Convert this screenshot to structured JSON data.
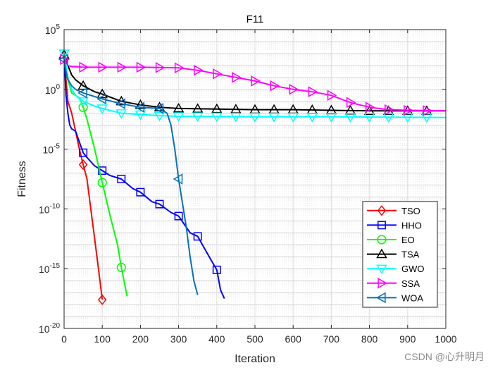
{
  "watermark": "CSDN @心升明月",
  "chart_data": {
    "type": "line",
    "title": "F11",
    "xlabel": "Iteration",
    "ylabel": "Fitness",
    "xlim": [
      0,
      1000
    ],
    "ylim": [
      1e-20,
      100000
    ],
    "yscale": "log",
    "grid": true,
    "legend_position": "bottom-right",
    "x_ticks": [
      0,
      100,
      200,
      300,
      400,
      500,
      600,
      700,
      800,
      900,
      1000
    ],
    "x_tick_labels": [
      "0",
      "100",
      "200",
      "300",
      "400",
      "500",
      "600",
      "700",
      "800",
      "900",
      "1000"
    ],
    "y_ticks": [
      -20,
      -15,
      -10,
      -5,
      0,
      5
    ],
    "y_tick_labels": [
      {
        "base": "10",
        "exp": "-20"
      },
      {
        "base": "10",
        "exp": "-15"
      },
      {
        "base": "10",
        "exp": "-10"
      },
      {
        "base": "10",
        "exp": "-5"
      },
      {
        "base": "10",
        "exp": "0"
      },
      {
        "base": "10",
        "exp": "5"
      }
    ],
    "series": [
      {
        "name": "TSO",
        "color": "#ff0000",
        "marker": "diamond",
        "x": [
          1,
          5,
          10,
          20,
          30,
          40,
          50,
          60,
          70,
          80,
          90,
          100
        ],
        "log10_y": [
          2.5,
          0.8,
          -1.0,
          -2.0,
          -3.5,
          -5.0,
          -6.3,
          -7.5,
          -10.0,
          -12.5,
          -15.0,
          -17.6
        ],
        "marker_x": [
          50,
          100
        ]
      },
      {
        "name": "HHO",
        "color": "#0000ff",
        "marker": "square",
        "x": [
          1,
          5,
          10,
          15,
          20,
          30,
          50,
          60,
          80,
          100,
          120,
          150,
          180,
          200,
          230,
          250,
          280,
          300,
          330,
          350,
          380,
          400,
          410,
          420
        ],
        "log10_y": [
          2.5,
          -0.5,
          -2.0,
          -3.0,
          -3.3,
          -3.5,
          -5.3,
          -5.7,
          -6.4,
          -6.8,
          -7.2,
          -7.5,
          -8.3,
          -8.6,
          -9.4,
          -9.6,
          -10.3,
          -10.6,
          -12.0,
          -12.3,
          -14.0,
          -15.1,
          -16.8,
          -17.5
        ],
        "marker_x": [
          50,
          100,
          150,
          200,
          250,
          300,
          350,
          400
        ]
      },
      {
        "name": "EO",
        "color": "#00ff00",
        "marker": "circle",
        "x": [
          1,
          5,
          10,
          20,
          40,
          50,
          60,
          80,
          100,
          120,
          140,
          150,
          160,
          165
        ],
        "log10_y": [
          2.5,
          1.5,
          0.8,
          -0.3,
          -0.7,
          -1.5,
          -2.5,
          -5.0,
          -7.8,
          -10.5,
          -13.0,
          -14.9,
          -16.5,
          -17.3
        ],
        "marker_x": [
          50,
          100,
          150
        ]
      },
      {
        "name": "TSA",
        "color": "#000000",
        "marker": "triangle-up",
        "x": [
          0,
          5,
          10,
          20,
          30,
          50,
          80,
          100,
          150,
          200,
          250,
          300,
          400,
          500,
          600,
          700,
          800,
          900,
          1000
        ],
        "log10_y": [
          2.9,
          2.5,
          2.0,
          1.2,
          0.8,
          0.3,
          -0.2,
          -0.4,
          -1.0,
          -1.3,
          -1.5,
          -1.6,
          -1.65,
          -1.7,
          -1.7,
          -1.75,
          -1.8,
          -1.8,
          -1.8
        ],
        "marker_x": [
          0,
          50,
          100,
          150,
          200,
          250,
          300,
          350,
          400,
          450,
          500,
          550,
          600,
          650,
          700,
          750,
          800,
          850,
          900,
          950
        ]
      },
      {
        "name": "GWO",
        "color": "#00ffff",
        "marker": "triangle-down",
        "x": [
          0,
          5,
          10,
          20,
          30,
          50,
          80,
          100,
          150,
          200,
          250,
          300,
          500,
          700,
          1000
        ],
        "log10_y": [
          3.0,
          2.0,
          1.0,
          0.0,
          -0.5,
          -1.0,
          -1.4,
          -1.6,
          -2.0,
          -2.1,
          -2.2,
          -2.25,
          -2.3,
          -2.3,
          -2.35
        ],
        "marker_x": [
          0,
          50,
          100,
          150,
          200,
          250,
          300,
          350,
          400,
          450,
          500,
          550,
          600,
          650,
          700,
          750,
          800,
          850,
          900,
          950
        ]
      },
      {
        "name": "SSA",
        "color": "#ff00ff",
        "marker": "triangle-right",
        "x": [
          0,
          5,
          10,
          20,
          30,
          50,
          100,
          200,
          300,
          350,
          400,
          450,
          500,
          550,
          600,
          650,
          700,
          750,
          800,
          850,
          900,
          1000
        ],
        "log10_y": [
          2.5,
          2.3,
          2.0,
          1.9,
          1.9,
          1.85,
          1.85,
          1.85,
          1.8,
          1.6,
          1.3,
          1.0,
          0.7,
          0.3,
          0.0,
          -0.2,
          -0.5,
          -1.1,
          -1.5,
          -1.7,
          -1.75,
          -1.8
        ],
        "marker_x": [
          0,
          50,
          100,
          150,
          200,
          250,
          300,
          350,
          400,
          450,
          500,
          550,
          600,
          650,
          700,
          750,
          800,
          850,
          900,
          950
        ]
      },
      {
        "name": "WOA",
        "color": "#0072bd",
        "marker": "triangle-left",
        "x": [
          0,
          5,
          10,
          20,
          30,
          50,
          80,
          100,
          150,
          200,
          250,
          270,
          280,
          290,
          300,
          310,
          320,
          330,
          340,
          350
        ],
        "log10_y": [
          2.5,
          1.5,
          0.8,
          0.3,
          0.0,
          -0.3,
          -0.6,
          -0.8,
          -1.2,
          -1.5,
          -1.6,
          -2.0,
          -3.0,
          -5.0,
          -7.5,
          -9.5,
          -11.5,
          -14.0,
          -16.0,
          -17.2
        ],
        "marker_x": [
          0,
          50,
          100,
          150,
          200,
          250,
          300
        ]
      }
    ]
  }
}
